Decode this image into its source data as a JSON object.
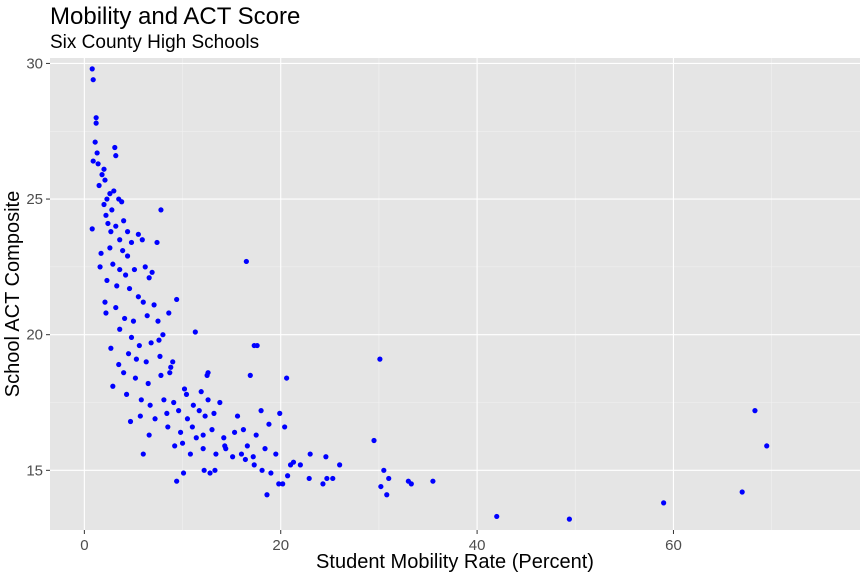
{
  "chart_data": {
    "type": "scatter",
    "title": "Mobility and ACT Score",
    "subtitle": "Six County High Schools",
    "xlabel": "Student Mobility Rate (Percent)",
    "ylabel": "School ACT Composite",
    "xlim": [
      -3.5,
      79
    ],
    "ylim": [
      12.8,
      30.2
    ],
    "x_ticks": [
      0,
      20,
      40,
      60
    ],
    "y_ticks": [
      15,
      20,
      25,
      30
    ],
    "grid": true,
    "legend": "none",
    "point_color": "#0000ff",
    "panel_background": "#e5e5e5",
    "points": [
      [
        0.8,
        29.8
      ],
      [
        0.9,
        29.4
      ],
      [
        1.2,
        28.0
      ],
      [
        1.2,
        27.8
      ],
      [
        1.1,
        27.1
      ],
      [
        1.3,
        26.7
      ],
      [
        0.9,
        26.4
      ],
      [
        1.4,
        26.3
      ],
      [
        2.0,
        26.1
      ],
      [
        1.8,
        25.9
      ],
      [
        1.5,
        25.5
      ],
      [
        2.1,
        25.7
      ],
      [
        2.6,
        25.2
      ],
      [
        2.3,
        25.0
      ],
      [
        2.0,
        24.8
      ],
      [
        3.0,
        25.3
      ],
      [
        3.5,
        25.0
      ],
      [
        2.8,
        24.6
      ],
      [
        2.2,
        24.4
      ],
      [
        2.4,
        24.1
      ],
      [
        0.8,
        23.9
      ],
      [
        3.2,
        24.0
      ],
      [
        4.0,
        24.2
      ],
      [
        2.7,
        23.8
      ],
      [
        3.6,
        23.5
      ],
      [
        1.7,
        23.0
      ],
      [
        2.6,
        23.2
      ],
      [
        3.9,
        23.1
      ],
      [
        4.4,
        22.9
      ],
      [
        1.6,
        22.5
      ],
      [
        2.9,
        22.6
      ],
      [
        3.6,
        22.4
      ],
      [
        4.2,
        22.2
      ],
      [
        5.1,
        22.4
      ],
      [
        6.2,
        22.5
      ],
      [
        6.9,
        22.3
      ],
      [
        2.3,
        22.0
      ],
      [
        3.3,
        21.8
      ],
      [
        4.6,
        21.7
      ],
      [
        5.5,
        21.4
      ],
      [
        6.0,
        21.2
      ],
      [
        7.1,
        21.1
      ],
      [
        2.1,
        21.2
      ],
      [
        3.2,
        21.0
      ],
      [
        4.1,
        20.6
      ],
      [
        5.0,
        20.5
      ],
      [
        6.4,
        20.7
      ],
      [
        7.5,
        20.5
      ],
      [
        8.6,
        20.8
      ],
      [
        9.4,
        21.3
      ],
      [
        2.2,
        20.8
      ],
      [
        3.6,
        20.2
      ],
      [
        4.8,
        19.9
      ],
      [
        5.6,
        19.6
      ],
      [
        6.8,
        19.7
      ],
      [
        8.0,
        20.0
      ],
      [
        2.7,
        19.5
      ],
      [
        4.5,
        19.3
      ],
      [
        5.3,
        19.1
      ],
      [
        6.3,
        19.0
      ],
      [
        7.7,
        19.2
      ],
      [
        9.0,
        19.0
      ],
      [
        3.5,
        18.9
      ],
      [
        4.0,
        18.6
      ],
      [
        5.2,
        18.4
      ],
      [
        6.5,
        18.2
      ],
      [
        7.8,
        18.5
      ],
      [
        8.7,
        18.6
      ],
      [
        2.9,
        18.1
      ],
      [
        4.3,
        17.8
      ],
      [
        5.8,
        17.6
      ],
      [
        6.7,
        17.4
      ],
      [
        8.1,
        17.6
      ],
      [
        9.1,
        17.5
      ],
      [
        10.4,
        17.8
      ],
      [
        11.1,
        17.4
      ],
      [
        12.6,
        17.6
      ],
      [
        13.8,
        17.5
      ],
      [
        4.7,
        16.8
      ],
      [
        5.7,
        17.0
      ],
      [
        7.2,
        16.9
      ],
      [
        8.4,
        17.1
      ],
      [
        9.6,
        17.2
      ],
      [
        10.5,
        16.9
      ],
      [
        11.7,
        17.2
      ],
      [
        12.3,
        17.0
      ],
      [
        6.6,
        16.3
      ],
      [
        8.5,
        16.6
      ],
      [
        9.8,
        16.4
      ],
      [
        11.0,
        16.6
      ],
      [
        12.1,
        16.3
      ],
      [
        13.0,
        16.5
      ],
      [
        14.2,
        16.2
      ],
      [
        15.3,
        16.4
      ],
      [
        16.2,
        16.5
      ],
      [
        17.5,
        16.3
      ],
      [
        18.8,
        16.7
      ],
      [
        20.4,
        16.6
      ],
      [
        6.0,
        15.6
      ],
      [
        9.2,
        15.9
      ],
      [
        10.8,
        15.6
      ],
      [
        12.1,
        15.8
      ],
      [
        13.4,
        15.6
      ],
      [
        14.4,
        15.8
      ],
      [
        16.0,
        15.6
      ],
      [
        17.2,
        15.5
      ],
      [
        18.4,
        15.8
      ],
      [
        19.5,
        15.6
      ],
      [
        21.3,
        15.3
      ],
      [
        23.0,
        15.6
      ],
      [
        24.6,
        15.5
      ],
      [
        26.0,
        15.2
      ],
      [
        9.4,
        14.6
      ],
      [
        10.1,
        14.9
      ],
      [
        12.2,
        15.0
      ],
      [
        12.8,
        14.9
      ],
      [
        13.3,
        15.0
      ],
      [
        15.1,
        15.5
      ],
      [
        16.4,
        15.4
      ],
      [
        17.3,
        15.2
      ],
      [
        19.0,
        14.9
      ],
      [
        19.8,
        14.5
      ],
      [
        20.2,
        14.5
      ],
      [
        20.7,
        14.8
      ],
      [
        21.0,
        15.2
      ],
      [
        22.0,
        15.2
      ],
      [
        22.9,
        14.7
      ],
      [
        24.7,
        14.7
      ],
      [
        24.3,
        14.5
      ],
      [
        25.3,
        14.7
      ],
      [
        18.6,
        14.1
      ],
      [
        30.2,
        14.4
      ],
      [
        30.5,
        15.0
      ],
      [
        31.0,
        14.7
      ],
      [
        30.8,
        14.1
      ],
      [
        33.0,
        14.6
      ],
      [
        33.3,
        14.5
      ],
      [
        35.5,
        14.6
      ],
      [
        29.5,
        16.1
      ],
      [
        30.1,
        19.1
      ],
      [
        16.5,
        22.7
      ],
      [
        16.9,
        18.5
      ],
      [
        17.3,
        19.6
      ],
      [
        17.6,
        19.6
      ],
      [
        20.6,
        18.4
      ],
      [
        11.3,
        20.1
      ],
      [
        7.8,
        24.6
      ],
      [
        7.4,
        23.4
      ],
      [
        6.6,
        22.1
      ],
      [
        5.9,
        23.5
      ],
      [
        5.5,
        23.7
      ],
      [
        4.8,
        23.4
      ],
      [
        4.4,
        23.8
      ],
      [
        3.8,
        24.9
      ],
      [
        3.2,
        26.6
      ],
      [
        3.1,
        26.9
      ],
      [
        7.6,
        19.8
      ],
      [
        8.8,
        18.8
      ],
      [
        10.2,
        18.0
      ],
      [
        12.5,
        18.5
      ],
      [
        12.6,
        18.6
      ],
      [
        11.9,
        17.9
      ],
      [
        13.2,
        17.1
      ],
      [
        15.6,
        17.0
      ],
      [
        18.0,
        17.2
      ],
      [
        19.9,
        17.1
      ],
      [
        10.0,
        16.0
      ],
      [
        11.4,
        16.2
      ],
      [
        14.3,
        15.9
      ],
      [
        16.6,
        15.9
      ],
      [
        18.1,
        15.0
      ],
      [
        42.0,
        13.3
      ],
      [
        49.4,
        13.2
      ],
      [
        59.0,
        13.8
      ],
      [
        67.0,
        14.2
      ],
      [
        68.3,
        17.2
      ],
      [
        69.5,
        15.9
      ]
    ]
  }
}
